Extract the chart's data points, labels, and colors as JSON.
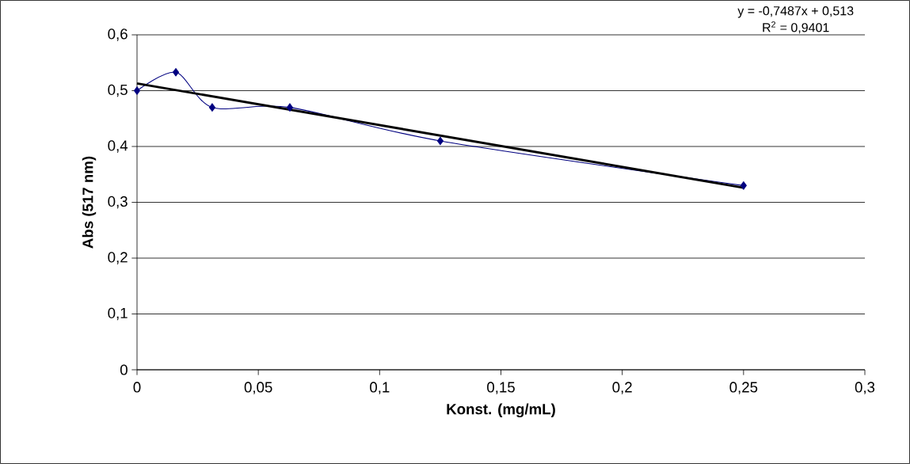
{
  "chart_data": {
    "type": "line",
    "xlabel": "Konst. (mg/mL)",
    "ylabel": "Abs (517 nm)",
    "annotations": [
      "y = -0,7487x + 0,513",
      "R$^{2}$ = 0,9401"
    ],
    "series": [
      {
        "color": "#000080",
        "x": [
          0,
          0.016,
          0.031,
          0.063,
          0.125,
          0.25
        ],
        "values": [
          0.5,
          0.533,
          0.47,
          0.47,
          0.41,
          0.33
        ],
        "marker": "diamond",
        "line_style": "solid"
      },
      {
        "color": "#000000",
        "x": [
          0,
          0.25
        ],
        "values": [
          0.513,
          0.326
        ],
        "marker": "none",
        "line_style": "solid"
      }
    ],
    "xlim": [
      0,
      0.3
    ],
    "ylim": [
      0,
      0.6
    ],
    "xticks": [
      0,
      {
        "value": 0.05,
        "label": "0,05"
      },
      {
        "value": 0.1,
        "label": "0,1"
      },
      {
        "value": 0.15,
        "label": "0,15"
      },
      {
        "value": 0.2,
        "label": "0,2"
      },
      {
        "value": 0.25,
        "label": "0,25"
      },
      {
        "value": 0.3,
        "label": "0,3"
      }
    ],
    "yticks": [
      0,
      {
        "value": 0.1,
        "label": "0,1"
      },
      {
        "value": 0.2,
        "label": "0,2"
      },
      {
        "value": 0.3,
        "label": "0,3"
      },
      {
        "value": 0.4,
        "label": "0,4"
      },
      {
        "value": 0.5,
        "label": "0,5"
      },
      {
        "value": 0.6,
        "label": "0,6"
      }
    ],
    "grid": "y"
  }
}
